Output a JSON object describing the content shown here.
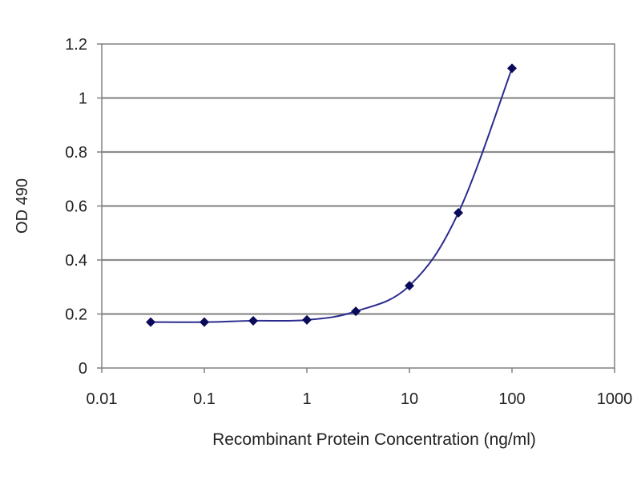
{
  "chart_data": {
    "type": "scatter",
    "title": "",
    "xlabel": "Recombinant Protein Concentration (ng/ml)",
    "ylabel": "OD 490",
    "xscale": "log",
    "xlim": [
      0.01,
      1000
    ],
    "ylim": [
      0,
      1.2
    ],
    "grid": "horizontal",
    "legend": "none",
    "x_ticks": [
      "0.01",
      "0.1",
      "1",
      "10",
      "100",
      "1000"
    ],
    "y_ticks": [
      "0",
      "0.2",
      "0.4",
      "0.6",
      "0.8",
      "1",
      "1.2"
    ],
    "series": [
      {
        "x": [
          0.03,
          0.1,
          0.3,
          1,
          3,
          10,
          30,
          100
        ],
        "y": [
          0.17,
          0.17,
          0.175,
          0.178,
          0.21,
          0.305,
          0.575,
          1.11
        ],
        "color": "#2b2b8f",
        "marker_color": "#0a0a5a",
        "marker": "diamond",
        "line": "smooth"
      }
    ],
    "colors": {
      "plot_border": "#808080",
      "gridline": "#8c8c8c",
      "axis_text": "#222222"
    }
  }
}
